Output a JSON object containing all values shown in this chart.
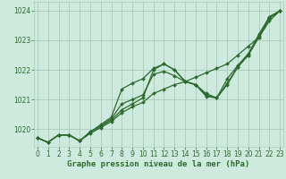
{
  "xlabel": "Graphe pression niveau de la mer (hPa)",
  "ylim": [
    1019.4,
    1024.3
  ],
  "xlim": [
    -0.3,
    23.3
  ],
  "yticks": [
    1020,
    1021,
    1022,
    1023,
    1024
  ],
  "xticks": [
    0,
    1,
    2,
    3,
    4,
    5,
    6,
    7,
    8,
    9,
    10,
    11,
    12,
    13,
    14,
    15,
    16,
    17,
    18,
    19,
    20,
    21,
    22,
    23
  ],
  "bg_color": "#ceeade",
  "grid_color": "#a8ccb8",
  "line_color": "#2d6a2d",
  "series": [
    [
      1019.7,
      1019.55,
      1019.8,
      1019.8,
      1019.6,
      1019.85,
      1020.05,
      1020.25,
      1020.55,
      1020.75,
      1020.9,
      1021.2,
      1021.35,
      1021.5,
      1021.6,
      1021.75,
      1021.9,
      1022.05,
      1022.2,
      1022.5,
      1022.8,
      1023.1,
      1023.65,
      1024.0
    ],
    [
      1019.7,
      1019.55,
      1019.8,
      1019.8,
      1019.6,
      1019.9,
      1020.1,
      1020.3,
      1020.65,
      1020.85,
      1021.05,
      1022.0,
      1022.2,
      1022.0,
      1021.6,
      1021.5,
      1021.15,
      1021.05,
      1021.55,
      1022.1,
      1022.5,
      1023.15,
      1023.75,
      1024.0
    ],
    [
      1019.7,
      1019.55,
      1019.8,
      1019.8,
      1019.6,
      1019.9,
      1020.1,
      1020.35,
      1020.85,
      1021.0,
      1021.15,
      1021.85,
      1021.95,
      1021.8,
      1021.6,
      1021.5,
      1021.2,
      1021.05,
      1021.7,
      1022.15,
      1022.55,
      1023.2,
      1023.8,
      1024.0
    ],
    [
      1019.7,
      1019.55,
      1019.8,
      1019.8,
      1019.6,
      1019.9,
      1020.15,
      1020.4,
      1021.35,
      1021.55,
      1021.7,
      1022.05,
      1022.2,
      1022.0,
      1021.62,
      1021.5,
      1021.1,
      1021.05,
      1021.5,
      1022.1,
      1022.5,
      1023.1,
      1023.75,
      1024.0
    ]
  ],
  "marker": "D",
  "markersize": 2.0,
  "linewidth": 0.9,
  "tick_fontsize": 5.5,
  "xlabel_fontsize": 6.5
}
